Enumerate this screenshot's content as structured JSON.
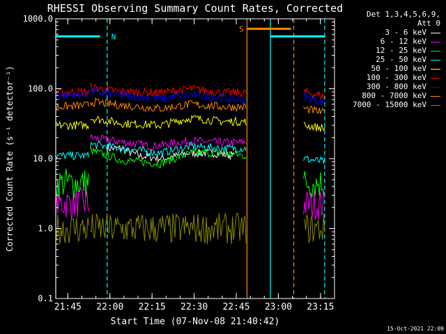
{
  "chart_data": {
    "type": "line",
    "title": "RHESSI Observing Summary Count Rates, Corrected",
    "xlabel": "Start Time (07-Nov-08 21:40:42)",
    "ylabel": "Corrected Count Rate (s⁻¹ detector⁻¹)",
    "ylim": [
      0.1,
      1000.0
    ],
    "yscale": "log",
    "yticks": [
      "0.1",
      "1.0",
      "10.0",
      "100.0",
      "1000.0"
    ],
    "xlim": [
      "21:40:42",
      "23:20:00"
    ],
    "xticks": [
      "21:45",
      "22:00",
      "22:15",
      "22:30",
      "22:45",
      "23:00",
      "23:15"
    ],
    "legend_header": [
      "Det 1,3,4,5,6,9,",
      "Att 0"
    ],
    "legend_position": "top-right",
    "series": [
      {
        "name": "3 - 6 keV",
        "color": "#ffffff",
        "segments": [
          [
            "21:59:00",
            "22:44:00",
            [
              [
                0,
                14
              ],
              [
                0.1,
                14
              ],
              [
                0.25,
                11
              ],
              [
                0.45,
                10
              ],
              [
                0.65,
                12
              ],
              [
                0.85,
                12
              ],
              [
                1,
                11
              ]
            ]
          ]
        ]
      },
      {
        "name": "6 - 12 keV",
        "color": "#ff00ff",
        "segments": [
          [
            "21:40:42",
            "21:52:30",
            [
              [
                0,
                2.3
              ],
              [
                1,
                2.3
              ]
            ]
          ],
          [
            "21:53:00",
            "22:48:30",
            [
              [
                0,
                20
              ],
              [
                0.15,
                18
              ],
              [
                0.4,
                15
              ],
              [
                0.65,
                18
              ],
              [
                0.85,
                17
              ],
              [
                1,
                17
              ]
            ]
          ],
          [
            "23:09:00",
            "23:16:30",
            [
              [
                0,
                2.2
              ],
              [
                1,
                2.2
              ]
            ]
          ]
        ]
      },
      {
        "name": "12 - 25 keV",
        "color": "#00ff00",
        "segments": [
          [
            "21:40:42",
            "21:52:30",
            [
              [
                0,
                4.5
              ],
              [
                1,
                4.5
              ]
            ]
          ],
          [
            "21:53:00",
            "22:48:30",
            [
              [
                0,
                13
              ],
              [
                0.2,
                9.5
              ],
              [
                0.45,
                8.5
              ],
              [
                0.65,
                12
              ],
              [
                0.85,
                12
              ],
              [
                1,
                11
              ]
            ]
          ],
          [
            "23:09:00",
            "23:16:30",
            [
              [
                0,
                4.5
              ],
              [
                1,
                4.5
              ]
            ]
          ]
        ]
      },
      {
        "name": "25 - 50 keV",
        "color": "#00ffff",
        "segments": [
          [
            "21:40:42",
            "21:52:30",
            [
              [
                0,
                11
              ],
              [
                1,
                11
              ]
            ]
          ],
          [
            "21:53:00",
            "22:48:30",
            [
              [
                0,
                16
              ],
              [
                0.2,
                14
              ],
              [
                0.45,
                12
              ],
              [
                0.65,
                15
              ],
              [
                0.85,
                14
              ],
              [
                1,
                14
              ]
            ]
          ],
          [
            "23:09:00",
            "23:16:30",
            [
              [
                0,
                10
              ],
              [
                1,
                9
              ]
            ]
          ]
        ]
      },
      {
        "name": "50 - 100 keV",
        "color": "#ffff00",
        "segments": [
          [
            "21:40:42",
            "21:52:30",
            [
              [
                0,
                30
              ],
              [
                1,
                30
              ]
            ]
          ],
          [
            "21:53:00",
            "22:48:30",
            [
              [
                0,
                38
              ],
              [
                0.2,
                32
              ],
              [
                0.45,
                30
              ],
              [
                0.65,
                38
              ],
              [
                0.85,
                34
              ],
              [
                1,
                34
              ]
            ]
          ],
          [
            "23:09:00",
            "23:16:30",
            [
              [
                0,
                30
              ],
              [
                1,
                27
              ]
            ]
          ]
        ]
      },
      {
        "name": "100 - 300 keV",
        "color": "#ff0000",
        "segments": [
          [
            "21:40:42",
            "21:52:30",
            [
              [
                0,
                88
              ],
              [
                1,
                90
              ]
            ]
          ],
          [
            "21:53:00",
            "22:48:30",
            [
              [
                0,
                105
              ],
              [
                0.2,
                90
              ],
              [
                0.45,
                88
              ],
              [
                0.65,
                100
              ],
              [
                0.85,
                88
              ],
              [
                1,
                88
              ]
            ]
          ],
          [
            "23:09:00",
            "23:16:30",
            [
              [
                0,
                90
              ],
              [
                1,
                78
              ]
            ]
          ]
        ]
      },
      {
        "name": "300 - 800 keV",
        "color": "#0000ff",
        "segments": [
          [
            "21:40:42",
            "21:52:30",
            [
              [
                0,
                80
              ],
              [
                1,
                82
              ]
            ]
          ],
          [
            "21:53:00",
            "22:48:30",
            [
              [
                0,
                92
              ],
              [
                0.2,
                80
              ],
              [
                0.45,
                72
              ],
              [
                0.65,
                82
              ],
              [
                0.85,
                74
              ],
              [
                1,
                68
              ]
            ]
          ],
          [
            "23:09:00",
            "23:16:30",
            [
              [
                0,
                78
              ],
              [
                1,
                62
              ]
            ]
          ]
        ]
      },
      {
        "name": "800 - 7000 keV",
        "color": "#ff8800",
        "segments": [
          [
            "21:40:42",
            "21:52:30",
            [
              [
                0,
                55
              ],
              [
                1,
                58
              ]
            ]
          ],
          [
            "21:53:00",
            "22:48:30",
            [
              [
                0,
                65
              ],
              [
                0.2,
                58
              ],
              [
                0.45,
                52
              ],
              [
                0.65,
                60
              ],
              [
                0.85,
                55
              ],
              [
                1,
                55
              ]
            ]
          ],
          [
            "23:09:00",
            "23:16:30",
            [
              [
                0,
                52
              ],
              [
                1,
                45
              ]
            ]
          ]
        ]
      },
      {
        "name": "7000 - 15000 keV",
        "color": "#888800",
        "segments": [
          [
            "21:40:42",
            "21:52:30",
            [
              [
                0,
                1
              ],
              [
                1,
                1
              ]
            ]
          ],
          [
            "21:53:00",
            "22:48:30",
            [
              [
                0,
                1
              ],
              [
                1,
                1
              ]
            ]
          ],
          [
            "23:09:00",
            "23:16:30",
            [
              [
                0,
                1
              ],
              [
                1,
                1
              ]
            ]
          ]
        ]
      }
    ],
    "annotations": [
      {
        "label": "N",
        "color": "#00ffff"
      },
      {
        "label": "S",
        "color": "#ff8800"
      }
    ]
  },
  "stamp": "15-Oct-2021 22:09"
}
